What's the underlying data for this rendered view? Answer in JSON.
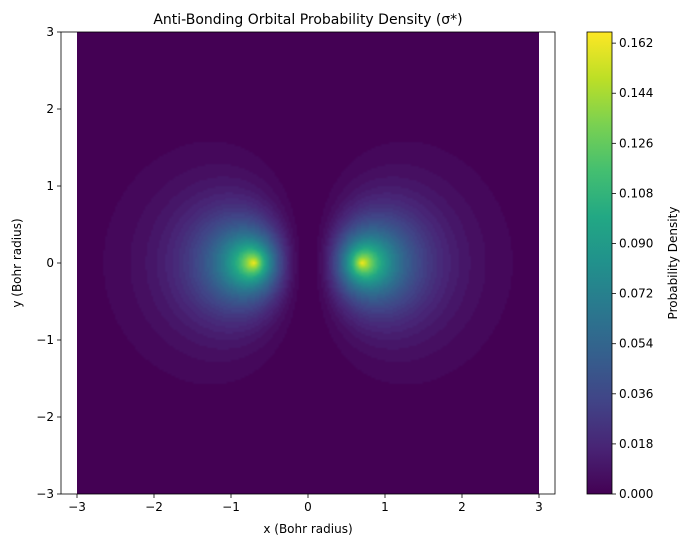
{
  "chart_data": {
    "type": "heatmap",
    "title": "Anti-Bonding Orbital Probability Density (σ*)",
    "xlabel": "x (Bohr radius)",
    "ylabel": "y (Bohr radius)",
    "xlim": [
      -3,
      3
    ],
    "ylim": [
      -3,
      3
    ],
    "x_ticks": [
      "−3",
      "−2",
      "−1",
      "0",
      "1",
      "2",
      "3"
    ],
    "y_ticks": [
      "−3",
      "−2",
      "−1",
      "0",
      "1",
      "2",
      "3"
    ],
    "x_tick_values": [
      -3,
      -2,
      -1,
      0,
      1,
      2,
      3
    ],
    "y_tick_values": [
      -3,
      -2,
      -1,
      0,
      1,
      2,
      3
    ],
    "nuclei_x": [
      -0.7,
      0.7
    ],
    "max_density": 0.166,
    "grid": false,
    "colormap": "viridis",
    "colorbar": {
      "label": "Probability Density",
      "range": [
        0.0,
        0.166
      ],
      "ticks": [
        "0.000",
        "0.018",
        "0.036",
        "0.054",
        "0.072",
        "0.090",
        "0.108",
        "0.126",
        "0.144",
        "0.162"
      ],
      "tick_values": [
        0.0,
        0.018,
        0.036,
        0.054,
        0.072,
        0.09,
        0.108,
        0.126,
        0.144,
        0.162
      ]
    }
  }
}
